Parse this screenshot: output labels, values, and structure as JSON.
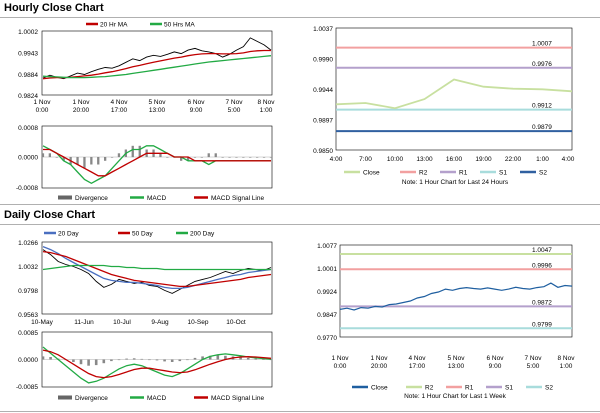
{
  "hourly": {
    "title": "Hourly Close Chart",
    "price": {
      "legend": [
        {
          "label": "20 Hr MA",
          "color": "#c00000"
        },
        {
          "label": "50 Hrs MA",
          "color": "#22aa44"
        }
      ],
      "yticks": [
        "1.0002",
        "0.9943",
        "0.9884",
        "0.9824"
      ],
      "xticks": [
        [
          "1 Nov",
          "0:00"
        ],
        [
          "1 Nov",
          "20:00"
        ],
        [
          "4 Nov",
          "17:00"
        ],
        [
          "5 Nov",
          "13:00"
        ],
        [
          "6 Nov",
          "9:00"
        ],
        [
          "7 Nov",
          "5:00"
        ],
        [
          "8 Nov",
          "1:00"
        ]
      ]
    },
    "macd": {
      "yticks": [
        "0.0008",
        "0.0000",
        "-0.0008"
      ],
      "legend": [
        {
          "label": "Divergence",
          "color": "#666666"
        },
        {
          "label": "MACD",
          "color": "#22aa44"
        },
        {
          "label": "MACD Signal Line",
          "color": "#c00000"
        }
      ]
    },
    "right": {
      "yticks": [
        "1.0037",
        "0.9990",
        "0.9944",
        "0.9897",
        "0.9850"
      ],
      "xticks": [
        "4:00",
        "7:00",
        "10:00",
        "13:00",
        "16:00",
        "19:00",
        "22:00",
        "1:00",
        "4:00"
      ],
      "levels": [
        {
          "label": "1.0007",
          "value": 1.0007,
          "color": "#f2a0a0"
        },
        {
          "label": "0.9976",
          "value": 0.9976,
          "color": "#b4a0cc"
        },
        {
          "label": "0.9912",
          "value": 0.9912,
          "color": "#a8dcdc"
        },
        {
          "label": "0.9879",
          "value": 0.9879,
          "color": "#3060a0"
        }
      ],
      "legend": [
        {
          "label": "Close",
          "color": "#c8e0a0"
        },
        {
          "label": "R2",
          "color": "#f2a0a0"
        },
        {
          "label": "R1",
          "color": "#b4a0cc"
        },
        {
          "label": "S1",
          "color": "#a8dcdc"
        },
        {
          "label": "S2",
          "color": "#3060a0"
        }
      ],
      "note": "Note: 1 Hour Chart for Last 24 Hours"
    }
  },
  "daily": {
    "title": "Daily Close Chart",
    "price": {
      "legend": [
        {
          "label": "20 Day",
          "color": "#4a6fc0"
        },
        {
          "label": "50 Day",
          "color": "#c00000"
        },
        {
          "label": "200 Day",
          "color": "#22aa44"
        }
      ],
      "yticks": [
        "1.0266",
        "1.0032",
        "0.9798",
        "0.9563"
      ],
      "xticks": [
        "10-May",
        "11-Jun",
        "10-Jul",
        "9-Aug",
        "10-Sep",
        "10-Oct"
      ]
    },
    "macd": {
      "yticks": [
        "0.0085",
        "0.0000",
        "-0.0085"
      ],
      "legend": [
        {
          "label": "Divergence",
          "color": "#666666"
        },
        {
          "label": "MACD",
          "color": "#22aa44"
        },
        {
          "label": "MACD Signal Line",
          "color": "#c00000"
        }
      ]
    },
    "right": {
      "yticks": [
        "1.0077",
        "1.0001",
        "0.9924",
        "0.9847",
        "0.9770"
      ],
      "xticks": [
        [
          "1 Nov",
          "0:00"
        ],
        [
          "1 Nov",
          "20:00"
        ],
        [
          "4 Nov",
          "17:00"
        ],
        [
          "5 Nov",
          "13:00"
        ],
        [
          "6 Nov",
          "9:00"
        ],
        [
          "7 Nov",
          "5:00"
        ],
        [
          "8 Nov",
          "1:00"
        ]
      ],
      "levels": [
        {
          "label": "1.0047",
          "value": 1.0047,
          "color": "#c8e0a0"
        },
        {
          "label": "0.9996",
          "value": 0.9996,
          "color": "#f2a0a0"
        },
        {
          "label": "0.9872",
          "value": 0.9872,
          "color": "#b4a0cc"
        },
        {
          "label": "0.9799",
          "value": 0.9799,
          "color": "#a8dcdc"
        }
      ],
      "legend": [
        {
          "label": "Close",
          "color": "#1f5fa0"
        },
        {
          "label": "R2",
          "color": "#c8e0a0"
        },
        {
          "label": "R1",
          "color": "#f2a0a0"
        },
        {
          "label": "S1",
          "color": "#b4a0cc"
        },
        {
          "label": "S2",
          "color": "#a8dcdc"
        }
      ],
      "note": "Note: 1 Hour Chart for Last 1 Week"
    }
  },
  "chart_data": [
    {
      "type": "line",
      "name": "hourly-price",
      "ylim": [
        0.9824,
        1.0002
      ],
      "series": [
        {
          "name": "Close",
          "values": [
            0.987,
            0.9878,
            0.9872,
            0.9868,
            0.9876,
            0.9884,
            0.988,
            0.9888,
            0.9895,
            0.99,
            0.9898,
            0.9905,
            0.9915,
            0.9925,
            0.992,
            0.993,
            0.9935,
            0.9932,
            0.9938,
            0.9945,
            0.994,
            0.995,
            0.9955,
            0.9948,
            0.9945,
            0.994,
            0.993,
            0.9938,
            0.995,
            0.996,
            0.9985,
            0.9975,
            0.9965,
            0.995
          ]
        },
        {
          "name": "20 Hr MA",
          "values": [
            0.9868,
            0.987,
            0.9871,
            0.9871,
            0.9872,
            0.9874,
            0.9876,
            0.9878,
            0.9881,
            0.9885,
            0.9888,
            0.9892,
            0.9897,
            0.9902,
            0.9906,
            0.9911,
            0.9915,
            0.9919,
            0.9923,
            0.9927,
            0.993,
            0.9934,
            0.9937,
            0.9939,
            0.994,
            0.994,
            0.9939,
            0.9939,
            0.994,
            0.9942,
            0.9946,
            0.9948,
            0.9949,
            0.9949
          ]
        },
        {
          "name": "50 Hrs MA",
          "values": [
            0.9875,
            0.9874,
            0.9873,
            0.9872,
            0.9871,
            0.9871,
            0.9871,
            0.9872,
            0.9873,
            0.9874,
            0.9876,
            0.9878,
            0.988,
            0.9883,
            0.9886,
            0.9889,
            0.9892,
            0.9895,
            0.9898,
            0.9901,
            0.9904,
            0.9907,
            0.991,
            0.9913,
            0.9916,
            0.9918,
            0.992,
            0.9922,
            0.9924,
            0.9926,
            0.9928,
            0.993,
            0.9932,
            0.9934
          ]
        }
      ]
    },
    {
      "type": "line",
      "name": "hourly-macd",
      "ylim": [
        -0.0008,
        0.0008
      ],
      "series": [
        {
          "name": "Divergence",
          "values": [
            0.0001,
            0.0001,
            0.0,
            -0.0001,
            -0.0002,
            -0.0002,
            -0.0003,
            -0.0002,
            -0.0002,
            -0.0001,
            0.0,
            0.0001,
            0.0002,
            0.0003,
            0.0003,
            0.0002,
            0.0002,
            0.0001,
            0.0,
            0.0,
            -0.0001,
            -0.0001,
            0.0,
            0.0,
            0.0001,
            0.0001,
            0.0,
            0.0,
            0.0,
            0.0,
            0.0,
            0.0,
            0.0,
            0.0
          ]
        },
        {
          "name": "MACD",
          "values": [
            0.0003,
            0.0002,
            0.0001,
            -0.0001,
            -0.0002,
            -0.0004,
            -0.0006,
            -0.0007,
            -0.0006,
            -0.0005,
            -0.0003,
            -0.0001,
            0.0001,
            0.0002,
            0.0002,
            0.0003,
            0.0003,
            0.0002,
            0.0001,
            0.0,
            0.0,
            -0.0001,
            -0.0001,
            -0.0001,
            -0.0002,
            -0.0001,
            -0.0001,
            -0.0001,
            -0.0001,
            -0.0001,
            -0.0001,
            -0.0001,
            -0.0001,
            -0.0001
          ]
        },
        {
          "name": "MACD Signal Line",
          "values": [
            0.0002,
            0.0002,
            0.0001,
            0.0,
            -0.0001,
            -0.0002,
            -0.0003,
            -0.0004,
            -0.0005,
            -0.0005,
            -0.0004,
            -0.0003,
            -0.0002,
            -0.0001,
            0.0,
            0.0001,
            0.0001,
            0.0001,
            0.0001,
            0.0,
            0.0,
            0.0,
            -0.0001,
            -0.0001,
            -0.0001,
            -0.0001,
            -0.0001,
            -0.0001,
            -0.0001,
            -0.0001,
            -0.0001,
            -0.0001,
            -0.0001,
            -0.0001
          ]
        }
      ]
    },
    {
      "type": "line",
      "name": "hourly-last-24h",
      "x": [
        "4:00",
        "7:00",
        "10:00",
        "13:00",
        "16:00",
        "19:00",
        "22:00",
        "1:00",
        "4:00"
      ],
      "ylim": [
        0.985,
        1.0037
      ],
      "series": [
        {
          "name": "Close",
          "values": [
            0.992,
            0.9922,
            0.9914,
            0.9928,
            0.9958,
            0.9947,
            0.9944,
            0.9943,
            0.994
          ]
        }
      ],
      "levels": {
        "R2": 1.0007,
        "R1": 0.9976,
        "S1": 0.9912,
        "S2": 0.9879
      }
    },
    {
      "type": "line",
      "name": "daily-price",
      "ylim": [
        0.9563,
        1.0266
      ],
      "series": [
        {
          "name": "Close",
          "values": [
            1.02,
            1.015,
            1.008,
            1.005,
            1.003,
            1.0,
            0.996,
            0.988,
            0.982,
            0.985,
            0.99,
            0.988,
            0.986,
            0.987,
            0.984,
            0.983,
            0.979,
            0.976,
            0.98,
            0.984,
            0.988,
            0.99,
            0.992,
            0.995,
            0.998,
            0.996,
            0.999,
            1.001,
            1.0,
            0.999,
            1.002
          ]
        },
        {
          "name": "20 Day",
          "values": [
            1.023,
            1.02,
            1.016,
            1.011,
            1.007,
            1.003,
            0.999,
            0.995,
            0.991,
            0.989,
            0.988,
            0.987,
            0.987,
            0.986,
            0.985,
            0.984,
            0.982,
            0.981,
            0.981,
            0.982,
            0.984,
            0.986,
            0.988,
            0.99,
            0.992,
            0.994,
            0.995,
            0.997,
            0.998,
            0.999,
            1.0
          ]
        },
        {
          "name": "50 Day",
          "values": [
            1.018,
            1.017,
            1.015,
            1.013,
            1.01,
            1.007,
            1.004,
            1.001,
            0.998,
            0.995,
            0.993,
            0.991,
            0.989,
            0.988,
            0.987,
            0.986,
            0.985,
            0.984,
            0.983,
            0.983,
            0.984,
            0.985,
            0.986,
            0.987,
            0.988,
            0.989,
            0.99,
            0.992,
            0.993,
            0.994,
            0.995
          ]
        },
        {
          "name": "200 Day",
          "values": [
            1.0,
            1.001,
            1.002,
            1.003,
            1.004,
            1.004,
            1.004,
            1.004,
            1.004,
            1.003,
            1.003,
            1.002,
            1.002,
            1.001,
            1.001,
            1.001,
            1.0,
            1.0,
            1.0,
            1.0,
            1.0,
            1.0,
            1.0,
            1.0,
            1.0,
            1.0,
            1.0,
            1.0,
            1.0,
            1.0,
            1.0
          ]
        }
      ]
    },
    {
      "type": "line",
      "name": "daily-macd",
      "ylim": [
        -0.0085,
        0.0085
      ],
      "series": [
        {
          "name": "Divergence",
          "values": [
            0.001,
            0.0008,
            0.0003,
            -0.0002,
            -0.0008,
            -0.0015,
            -0.002,
            -0.0018,
            -0.0012,
            -0.0005,
            0.0,
            0.0003,
            0.0004,
            0.0002,
            0.0,
            -0.0003,
            -0.0006,
            -0.0008,
            -0.0005,
            0.0,
            0.0005,
            0.001,
            0.0012,
            0.0013,
            0.0012,
            0.001,
            0.0008,
            0.0005,
            0.0003,
            0.0001,
            0.0
          ]
        },
        {
          "name": "MACD",
          "values": [
            0.004,
            0.002,
            0.0,
            -0.002,
            -0.004,
            -0.006,
            -0.0075,
            -0.007,
            -0.006,
            -0.0045,
            -0.003,
            -0.002,
            -0.0015,
            -0.002,
            -0.003,
            -0.004,
            -0.005,
            -0.0055,
            -0.0045,
            -0.003,
            -0.0015,
            0.0,
            0.001,
            0.0015,
            0.0018,
            0.0015,
            0.0012,
            0.0008,
            0.0005,
            0.0003,
            0.0001
          ]
        },
        {
          "name": "MACD Signal Line",
          "values": [
            0.003,
            0.0025,
            0.0015,
            0.0,
            -0.0015,
            -0.003,
            -0.0045,
            -0.0055,
            -0.0058,
            -0.0055,
            -0.0048,
            -0.004,
            -0.0032,
            -0.0028,
            -0.0028,
            -0.0032,
            -0.0036,
            -0.004,
            -0.0042,
            -0.004,
            -0.0033,
            -0.0024,
            -0.0015,
            -0.0007,
            0.0,
            0.0005,
            0.0008,
            0.0009,
            0.0008,
            0.0006,
            0.0004
          ]
        }
      ]
    },
    {
      "type": "line",
      "name": "daily-last-week",
      "ylim": [
        0.977,
        1.0077
      ],
      "series": [
        {
          "name": "Close",
          "values": [
            0.9862,
            0.9866,
            0.986,
            0.9868,
            0.9866,
            0.9872,
            0.987,
            0.9878,
            0.988,
            0.9885,
            0.989,
            0.99,
            0.9905,
            0.9915,
            0.992,
            0.993,
            0.9926,
            0.9932,
            0.9935,
            0.9932,
            0.993,
            0.9934,
            0.993,
            0.9926,
            0.993,
            0.9936,
            0.9932,
            0.993,
            0.9935,
            0.9938,
            0.995,
            0.9936,
            0.9942,
            0.994
          ]
        }
      ],
      "levels": {
        "R2": 1.0047,
        "R1": 0.9996,
        "S1": 0.9872,
        "S2": 0.9799
      }
    }
  ]
}
